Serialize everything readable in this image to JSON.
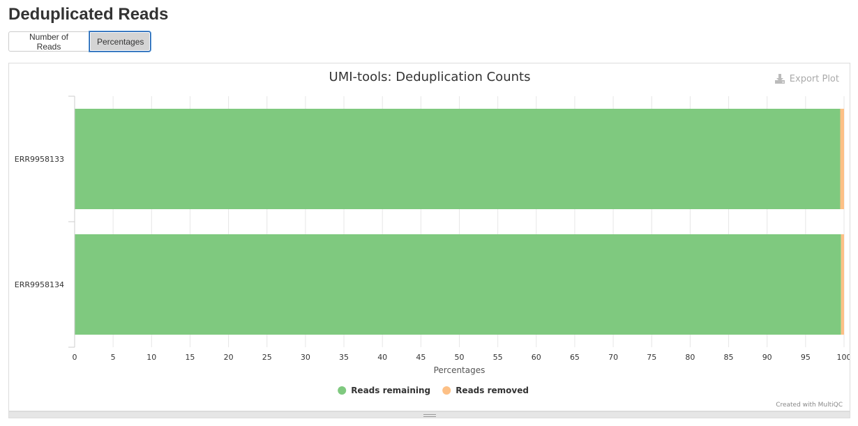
{
  "page": {
    "title": "Deduplicated Reads",
    "buttons": [
      "Number of Reads",
      "Percentages"
    ],
    "active_button": "Percentages",
    "export_label": "Export Plot",
    "credit": "Created with MultiQC"
  },
  "chart_data": {
    "type": "bar",
    "orientation": "horizontal",
    "stacked": true,
    "title": "UMI-tools: Deduplication Counts",
    "xlabel": "Percentages",
    "ylabel": "",
    "xlim": [
      0,
      100
    ],
    "xticks": [
      0,
      5,
      10,
      15,
      20,
      25,
      30,
      35,
      40,
      45,
      50,
      55,
      60,
      65,
      70,
      75,
      80,
      85,
      90,
      95,
      100
    ],
    "grid": true,
    "legend": "bottom-center",
    "categories": [
      "ERR9958133",
      "ERR9958134"
    ],
    "series": [
      {
        "name": "Reads remaining",
        "color": "#7fc97f",
        "values": [
          99.5,
          99.6
        ]
      },
      {
        "name": "Reads removed",
        "color": "#fdc086",
        "values": [
          0.5,
          0.4
        ]
      }
    ]
  },
  "icons": {
    "export": "download-icon"
  }
}
